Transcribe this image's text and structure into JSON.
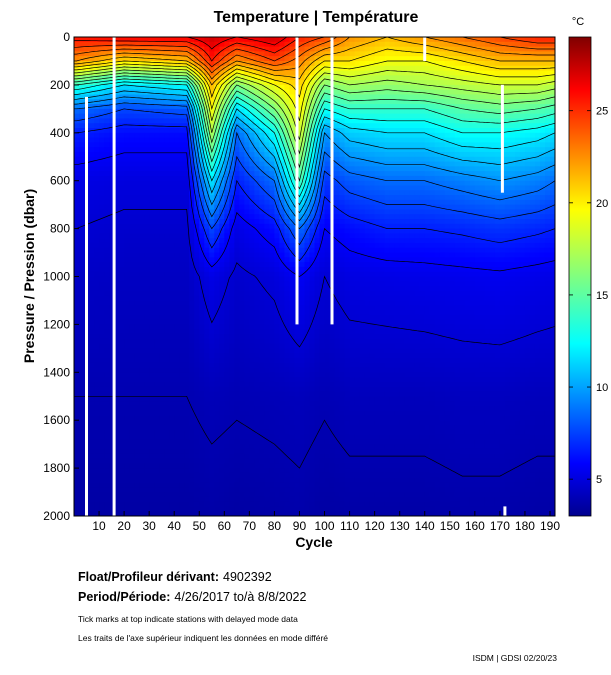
{
  "chart_data": {
    "type": "heatmap",
    "title": "Temperature | Température",
    "xlabel": "Cycle",
    "ylabel": "Pressure / Pression (dbar)",
    "xlim": [
      0,
      192
    ],
    "ylim": [
      0,
      2000
    ],
    "y_inverted": true,
    "x_ticks": [
      10,
      20,
      30,
      40,
      50,
      60,
      70,
      80,
      90,
      100,
      110,
      120,
      130,
      140,
      150,
      160,
      170,
      180,
      190
    ],
    "x_tick_labels": [
      "10",
      "20",
      "30",
      "40",
      "50",
      "60",
      "70",
      "80",
      "90",
      "100",
      "110",
      "120",
      "130",
      "140",
      "150",
      "160",
      "170",
      "180",
      "190"
    ],
    "y_ticks": [
      0,
      200,
      400,
      600,
      800,
      1000,
      1200,
      1400,
      1600,
      1800,
      2000
    ],
    "y_tick_labels": [
      "0",
      "200",
      "400",
      "600",
      "800",
      "1000",
      "1200",
      "1400",
      "1600",
      "1800",
      "2000"
    ],
    "colorbar": {
      "unit": "°C",
      "range": [
        3,
        29
      ],
      "ticks": [
        5,
        10,
        15,
        20,
        25
      ],
      "tick_labels": [
        "5",
        "10",
        "15",
        "20",
        "25"
      ],
      "colormap": [
        "#00008f",
        "#0000ff",
        "#0080ff",
        "#00ffff",
        "#80ff80",
        "#ffff00",
        "#ff8000",
        "#ff0000",
        "#800000"
      ]
    },
    "contour_levels": [
      4,
      5,
      6,
      7,
      8,
      9,
      10,
      11,
      12,
      13,
      14,
      15,
      16,
      17,
      18,
      19,
      20,
      21,
      22,
      23,
      24,
      25,
      26,
      27,
      28
    ],
    "series": [
      {
        "name": "Cycle 1",
        "x": 1,
        "pressure": [
          0,
          100,
          200,
          300,
          400,
          600,
          800,
          1000,
          1500,
          2000
        ],
        "temperature": [
          25.5,
          22,
          14,
          9,
          7,
          5.5,
          5,
          4.6,
          4,
          3.6
        ]
      },
      {
        "name": "Cycle 20",
        "x": 20,
        "pressure": [
          0,
          100,
          200,
          300,
          400,
          600,
          800,
          1000,
          1500,
          2000
        ],
        "temperature": [
          26,
          20,
          12,
          8,
          6.5,
          5.3,
          4.8,
          4.5,
          4,
          3.6
        ]
      },
      {
        "name": "Cycle 45",
        "x": 45,
        "pressure": [
          0,
          100,
          200,
          300,
          400,
          600,
          800,
          1000,
          1500,
          2000
        ],
        "temperature": [
          26,
          21,
          13,
          8.5,
          6.5,
          5.3,
          4.8,
          4.5,
          4,
          3.6
        ]
      },
      {
        "name": "Cycle 55",
        "x": 55,
        "pressure": [
          0,
          100,
          200,
          300,
          400,
          600,
          800,
          1000,
          1500,
          2000
        ],
        "temperature": [
          27,
          25,
          21,
          19,
          17,
          12,
          8,
          5.5,
          4.2,
          3.7
        ]
      },
      {
        "name": "Cycle 65",
        "x": 65,
        "pressure": [
          0,
          100,
          200,
          300,
          400,
          600,
          800,
          1000,
          1500,
          2000
        ],
        "temperature": [
          26,
          22,
          16,
          12,
          9,
          7,
          5.5,
          4.8,
          4.1,
          3.6
        ]
      },
      {
        "name": "Cycle 80",
        "x": 80,
        "pressure": [
          0,
          100,
          200,
          300,
          400,
          600,
          800,
          1000,
          1500,
          2000
        ],
        "temperature": [
          27,
          24,
          19,
          16,
          13,
          9,
          6.5,
          5.2,
          4.2,
          3.7
        ]
      },
      {
        "name": "Cycle 90",
        "x": 90,
        "pressure": [
          0,
          100,
          200,
          300,
          400,
          600,
          800,
          1000,
          1500,
          2000
        ],
        "temperature": [
          25,
          22.5,
          20.5,
          19.5,
          18.5,
          15,
          9,
          6,
          4.3,
          3.8
        ]
      },
      {
        "name": "Cycle 100",
        "x": 100,
        "pressure": [
          0,
          100,
          200,
          300,
          400,
          600,
          800,
          1000,
          1500,
          2000
        ],
        "temperature": [
          24,
          20,
          16,
          13,
          10,
          7.5,
          6,
          5,
          4.1,
          3.6
        ]
      },
      {
        "name": "Cycle 110",
        "x": 110,
        "pressure": [
          0,
          100,
          200,
          300,
          400,
          600,
          800,
          1000,
          1500,
          2000
        ],
        "temperature": [
          22,
          20,
          17,
          14,
          11.5,
          8.5,
          6.5,
          5.4,
          4.3,
          3.7
        ]
      },
      {
        "name": "Cycle 125",
        "x": 125,
        "pressure": [
          0,
          100,
          200,
          300,
          400,
          600,
          800,
          1000,
          1500,
          2000
        ],
        "temperature": [
          21,
          19,
          16.5,
          14,
          12,
          9,
          7,
          5.5,
          4.3,
          3.7
        ]
      },
      {
        "name": "Cycle 140",
        "x": 140,
        "pressure": [
          0,
          100,
          200,
          300,
          400,
          600,
          800,
          1000,
          1500,
          2000
        ],
        "temperature": [
          22,
          19,
          17,
          14,
          12,
          9,
          7,
          5.6,
          4.3,
          3.7
        ]
      },
      {
        "name": "Cycle 155",
        "x": 155,
        "pressure": [
          0,
          100,
          200,
          300,
          400,
          600,
          800,
          1000,
          1500,
          2000
        ],
        "temperature": [
          23,
          20,
          17.5,
          15,
          13,
          9.5,
          7.2,
          5.7,
          4.4,
          3.8
        ]
      },
      {
        "name": "Cycle 170",
        "x": 170,
        "pressure": [
          0,
          100,
          200,
          300,
          400,
          600,
          800,
          1000,
          1500,
          2000
        ],
        "temperature": [
          24,
          21,
          18,
          15.5,
          13,
          10,
          7.5,
          5.8,
          4.4,
          3.8
        ]
      },
      {
        "name": "Cycle 185",
        "x": 185,
        "pressure": [
          0,
          100,
          200,
          300,
          400,
          600,
          800,
          1000,
          1500,
          2000
        ],
        "temperature": [
          25,
          21,
          18,
          15,
          12.5,
          9.5,
          7.2,
          5.6,
          4.3,
          3.7
        ]
      },
      {
        "name": "Cycle 192",
        "x": 192,
        "pressure": [
          0,
          100,
          200,
          300,
          400,
          600,
          800,
          1000,
          1500,
          2000
        ],
        "temperature": [
          25,
          21,
          17.5,
          14.5,
          12,
          9,
          7,
          5.5,
          4.3,
          3.7
        ]
      }
    ],
    "missing_profiles": [
      {
        "cycle": 5,
        "from": 250,
        "to": 2000
      },
      {
        "cycle": 16,
        "from": 0,
        "to": 2000
      },
      {
        "cycle": 89,
        "from": 0,
        "to": 1200
      },
      {
        "cycle": 103,
        "from": 0,
        "to": 1200
      },
      {
        "cycle": 140,
        "from": 0,
        "to": 100
      },
      {
        "cycle": 171,
        "from": 200,
        "to": 650
      },
      {
        "cycle": 172,
        "from": 1960,
        "to": 2000
      }
    ]
  },
  "float_label": "Float/Profileur dérivant:",
  "float_id": "4902392",
  "period_label": "Period/Période:",
  "period_value": "4/26/2017  to/à  8/8/2022",
  "note_en": "Tick marks at top indicate stations with delayed mode data",
  "note_fr": "Les traits de l'axe supérieur indiquent les données en mode différé",
  "footer": "ISDM | GDSI  02/20/23"
}
